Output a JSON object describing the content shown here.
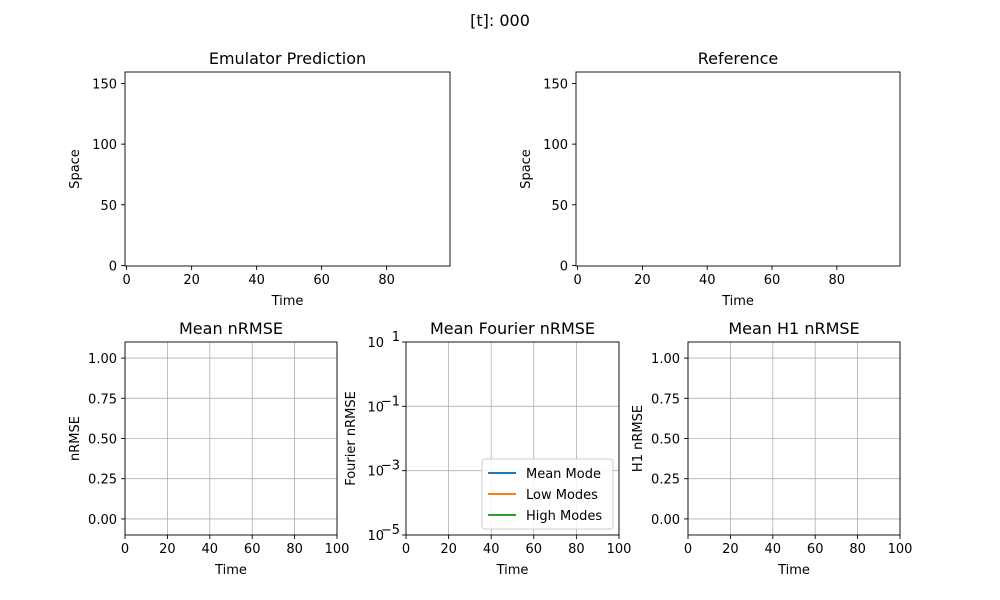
{
  "suptitle": "[t]: 000",
  "legend": {
    "placement": "lower-right",
    "entries": [
      {
        "label": "Mean Mode",
        "color": "#1f77b4"
      },
      {
        "label": "Low Modes",
        "color": "#ff7f0e"
      },
      {
        "label": "High Modes",
        "color": "#2ca02c"
      }
    ]
  },
  "chart_data": [
    {
      "type": "heatmap",
      "title": "Emulator Prediction",
      "xlabel": "Time",
      "ylabel": "Space",
      "xlim": [
        -0.5,
        99.5
      ],
      "ylim": [
        -0.5,
        159.5
      ],
      "xticks": [
        0,
        20,
        40,
        60,
        80
      ],
      "yticks": [
        0,
        50,
        100,
        150
      ],
      "grid": false,
      "values": []
    },
    {
      "type": "heatmap",
      "title": "Reference",
      "xlabel": "Time",
      "ylabel": "Space",
      "xlim": [
        -0.5,
        99.5
      ],
      "ylim": [
        -0.5,
        159.5
      ],
      "xticks": [
        0,
        20,
        40,
        60,
        80
      ],
      "yticks": [
        0,
        50,
        100,
        150
      ],
      "grid": false,
      "values": []
    },
    {
      "type": "line",
      "title": "Mean nRMSE",
      "xlabel": "Time",
      "ylabel": "nRMSE",
      "xlim": [
        0,
        100
      ],
      "ylim": [
        -0.1,
        1.1
      ],
      "xticks": [
        0,
        20,
        40,
        60,
        80,
        100
      ],
      "yticks": [
        0.0,
        0.25,
        0.5,
        0.75,
        1.0
      ],
      "ytick_labels": [
        "0.00",
        "0.25",
        "0.50",
        "0.75",
        "1.00"
      ],
      "grid": true,
      "series": []
    },
    {
      "type": "line",
      "title": "Mean Fourier nRMSE",
      "xlabel": "Time",
      "ylabel": "Fourier nRMSE",
      "yscale": "log",
      "xlim": [
        0,
        100
      ],
      "ylim": [
        1e-05,
        10
      ],
      "xticks": [
        0,
        20,
        40,
        60,
        80,
        100
      ],
      "yticks": [
        1e-05,
        0.001,
        0.1,
        10
      ],
      "ytick_labels": [
        "10",
        "10",
        "10",
        "10"
      ],
      "ytick_exponents": [
        "−5",
        "−3",
        "−1",
        "1"
      ],
      "grid": true,
      "series": [
        {
          "name": "Mean Mode",
          "x": [],
          "y": []
        },
        {
          "name": "Low Modes",
          "x": [],
          "y": []
        },
        {
          "name": "High Modes",
          "x": [],
          "y": []
        }
      ]
    },
    {
      "type": "line",
      "title": "Mean H1 nRMSE",
      "xlabel": "Time",
      "ylabel": "H1 nRMSE",
      "xlim": [
        0,
        100
      ],
      "ylim": [
        -0.1,
        1.1
      ],
      "xticks": [
        0,
        20,
        40,
        60,
        80,
        100
      ],
      "yticks": [
        0.0,
        0.25,
        0.5,
        0.75,
        1.0
      ],
      "ytick_labels": [
        "0.00",
        "0.25",
        "0.50",
        "0.75",
        "1.00"
      ],
      "grid": true,
      "series": []
    }
  ]
}
